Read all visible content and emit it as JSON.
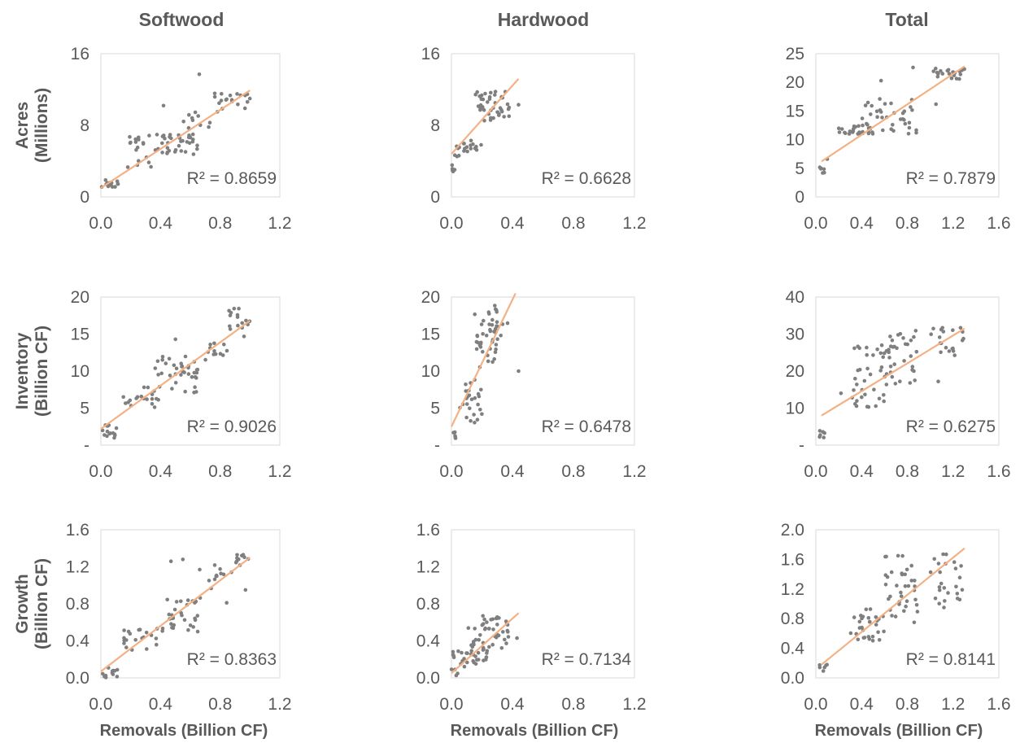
{
  "colors": {
    "points": "#7f7f7f",
    "trendline": "#f4b183",
    "text": "#595959",
    "frame": "#d9d9d9"
  },
  "chart_data": {
    "column_titles": [
      "Softwood",
      "Hardwood",
      "Total"
    ],
    "row_titles": [
      [
        "Acres",
        "(Millions)"
      ],
      [
        "Inventory",
        "(Billion CF)"
      ],
      [
        "Growth",
        "(Billion CF)"
      ]
    ],
    "x_axis_title": "Removals (Billion CF)",
    "panels": [
      {
        "id": "acres-softwood",
        "type": "scatter",
        "column": "Softwood",
        "row": "Acres",
        "r2": "R² = 0.8659",
        "xlim": [
          0,
          1.2
        ],
        "xticks": [
          "0.0",
          "0.4",
          "0.8",
          "1.2"
        ],
        "ylim": [
          0,
          16
        ],
        "yticks": [
          "0",
          "8",
          "16"
        ],
        "trendline": {
          "x": [
            0.0,
            1.0
          ],
          "y": [
            1.0,
            11.9
          ]
        },
        "clusters": [
          {
            "x": [
              0.0,
              0.12
            ],
            "y": [
              1.0,
              1.9
            ],
            "n": 14
          },
          {
            "x": [
              0.18,
              0.35
            ],
            "y": [
              3.0,
              7.0
            ],
            "n": 18
          },
          {
            "x": [
              0.35,
              0.65
            ],
            "y": [
              4.5,
              7.0
            ],
            "n": 34
          },
          {
            "x": [
              0.55,
              0.75
            ],
            "y": [
              6.0,
              9.5
            ],
            "n": 12
          },
          {
            "x": [
              0.75,
              1.0
            ],
            "y": [
              9.5,
              11.8
            ],
            "n": 20
          }
        ],
        "outliers": [
          {
            "x": 0.66,
            "y": 13.7
          },
          {
            "x": 0.42,
            "y": 10.2
          }
        ]
      },
      {
        "id": "acres-hardwood",
        "type": "scatter",
        "column": "Hardwood",
        "row": "Acres",
        "r2": "R² = 0.6628",
        "xlim": [
          0,
          1.2
        ],
        "xticks": [
          "0.0",
          "0.4",
          "0.8",
          "1.2"
        ],
        "ylim": [
          0,
          16
        ],
        "yticks": [
          "0",
          "8",
          "16"
        ],
        "trendline": {
          "x": [
            0.0,
            0.44
          ],
          "y": [
            4.8,
            13.2
          ]
        },
        "clusters": [
          {
            "x": [
              0.0,
              0.03
            ],
            "y": [
              2.8,
              3.8
            ],
            "n": 5
          },
          {
            "x": [
              0.02,
              0.1
            ],
            "y": [
              4.5,
              6.0
            ],
            "n": 8
          },
          {
            "x": [
              0.08,
              0.2
            ],
            "y": [
              5.0,
              6.5
            ],
            "n": 12
          },
          {
            "x": [
              0.15,
              0.4
            ],
            "y": [
              8.5,
              11.8
            ],
            "n": 45
          }
        ],
        "outliers": [
          {
            "x": 0.44,
            "y": 10.3
          }
        ]
      },
      {
        "id": "acres-total",
        "type": "scatter",
        "column": "Total",
        "row": "Acres",
        "r2": "R² = 0.7879",
        "xlim": [
          0,
          1.6
        ],
        "xticks": [
          "0.0",
          "0.4",
          "0.8",
          "1.2",
          "1.6"
        ],
        "ylim": [
          0,
          25
        ],
        "yticks": [
          "0",
          "5",
          "10",
          "15",
          "20",
          "25"
        ],
        "trendline": {
          "x": [
            0.05,
            1.3
          ],
          "y": [
            6.2,
            22.8
          ]
        },
        "clusters": [
          {
            "x": [
              0.03,
              0.08
            ],
            "y": [
              3.8,
              5.2
            ],
            "n": 6
          },
          {
            "x": [
              0.2,
              0.5
            ],
            "y": [
              11.0,
              12.5
            ],
            "n": 22
          },
          {
            "x": [
              0.4,
              0.9
            ],
            "y": [
              11.0,
              17.5
            ],
            "n": 40
          },
          {
            "x": [
              1.0,
              1.3
            ],
            "y": [
              20.5,
              22.5
            ],
            "n": 22
          }
        ],
        "outliers": [
          {
            "x": 0.57,
            "y": 20.3
          },
          {
            "x": 0.85,
            "y": 22.6
          },
          {
            "x": 1.05,
            "y": 16.2
          },
          {
            "x": 0.1,
            "y": 6.6
          }
        ]
      },
      {
        "id": "inventory-softwood",
        "type": "scatter",
        "column": "Softwood",
        "row": "Inventory",
        "r2": "R² = 0.9026",
        "xlim": [
          0,
          1.2
        ],
        "xticks": [
          "0.0",
          "0.4",
          "0.8",
          "1.2"
        ],
        "ylim": [
          0,
          20
        ],
        "yticks": [
          "-",
          "5",
          "10",
          "15",
          "20"
        ],
        "trendline": {
          "x": [
            0.0,
            1.0
          ],
          "y": [
            2.2,
            16.8
          ]
        },
        "clusters": [
          {
            "x": [
              0.0,
              0.12
            ],
            "y": [
              0.8,
              2.8
            ],
            "n": 14
          },
          {
            "x": [
              0.15,
              0.4
            ],
            "y": [
              5.0,
              8.0
            ],
            "n": 20
          },
          {
            "x": [
              0.35,
              0.65
            ],
            "y": [
              7.0,
              12.0
            ],
            "n": 35
          },
          {
            "x": [
              0.7,
              0.85
            ],
            "y": [
              11.0,
              14.0
            ],
            "n": 12
          },
          {
            "x": [
              0.85,
              1.0
            ],
            "y": [
              14.5,
              18.5
            ],
            "n": 16
          }
        ],
        "outliers": [
          {
            "x": 0.64,
            "y": 7.2
          },
          {
            "x": 0.5,
            "y": 14.3
          }
        ]
      },
      {
        "id": "inventory-hardwood",
        "type": "scatter",
        "column": "Hardwood",
        "row": "Inventory",
        "r2": "R² = 0.6478",
        "xlim": [
          0,
          1.2
        ],
        "xticks": [
          "0.0",
          "0.4",
          "0.8",
          "1.2"
        ],
        "ylim": [
          0,
          20
        ],
        "yticks": [
          "-",
          "5",
          "10",
          "15",
          "20"
        ],
        "trendline": {
          "x": [
            0.0,
            0.42
          ],
          "y": [
            2.5,
            20.5
          ]
        },
        "clusters": [
          {
            "x": [
              0.0,
              0.03
            ],
            "y": [
              0.8,
              2.5
            ],
            "n": 5
          },
          {
            "x": [
              0.05,
              0.2
            ],
            "y": [
              3.0,
              9.0
            ],
            "n": 25
          },
          {
            "x": [
              0.15,
              0.3
            ],
            "y": [
              10.5,
              19.5
            ],
            "n": 35
          },
          {
            "x": [
              0.25,
              0.4
            ],
            "y": [
              12.0,
              17.0
            ],
            "n": 12
          }
        ],
        "outliers": [
          {
            "x": 0.44,
            "y": 10.0
          }
        ]
      },
      {
        "id": "inventory-total",
        "type": "scatter",
        "column": "Total",
        "row": "Inventory",
        "r2": "R² = 0.6275",
        "xlim": [
          0,
          1.6
        ],
        "xticks": [
          "0.0",
          "0.4",
          "0.8",
          "1.2",
          "1.6"
        ],
        "ylim": [
          0,
          40
        ],
        "yticks": [
          "-",
          "10",
          "20",
          "30",
          "40"
        ],
        "trendline": {
          "x": [
            0.05,
            1.3
          ],
          "y": [
            8.0,
            31.5
          ]
        },
        "clusters": [
          {
            "x": [
              0.03,
              0.08
            ],
            "y": [
              2.0,
              4.0
            ],
            "n": 6
          },
          {
            "x": [
              0.3,
              0.6
            ],
            "y": [
              10.0,
              27.0
            ],
            "n": 35
          },
          {
            "x": [
              0.6,
              0.9
            ],
            "y": [
              16.0,
              31.0
            ],
            "n": 35
          },
          {
            "x": [
              1.0,
              1.3
            ],
            "y": [
              24.0,
              32.0
            ],
            "n": 20
          }
        ],
        "outliers": [
          {
            "x": 1.07,
            "y": 17.2
          },
          {
            "x": 0.22,
            "y": 14.0
          }
        ]
      },
      {
        "id": "growth-softwood",
        "type": "scatter",
        "column": "Softwood",
        "row": "Growth",
        "r2": "R² = 0.8363",
        "xlim": [
          0,
          1.2
        ],
        "xticks": [
          "0.0",
          "0.4",
          "0.8",
          "1.2"
        ],
        "ylim": [
          0,
          1.6
        ],
        "yticks": [
          "0.0",
          "0.4",
          "0.8",
          "1.2",
          "1.6"
        ],
        "trendline": {
          "x": [
            0.0,
            1.0
          ],
          "y": [
            0.07,
            1.3
          ]
        },
        "clusters": [
          {
            "x": [
              0.0,
              0.12
            ],
            "y": [
              0.0,
              0.12
            ],
            "n": 12
          },
          {
            "x": [
              0.15,
              0.4
            ],
            "y": [
              0.3,
              0.55
            ],
            "n": 20
          },
          {
            "x": [
              0.4,
              0.65
            ],
            "y": [
              0.5,
              0.85
            ],
            "n": 30
          },
          {
            "x": [
              0.65,
              0.9
            ],
            "y": [
              0.8,
              1.25
            ],
            "n": 14
          },
          {
            "x": [
              0.9,
              1.0
            ],
            "y": [
              1.2,
              1.33
            ],
            "n": 10
          }
        ],
        "outliers": [
          {
            "x": 0.47,
            "y": 1.26
          },
          {
            "x": 0.55,
            "y": 1.28
          },
          {
            "x": 0.97,
            "y": 0.95
          },
          {
            "x": 0.62,
            "y": 0.55
          }
        ]
      },
      {
        "id": "growth-hardwood",
        "type": "scatter",
        "column": "Hardwood",
        "row": "Growth",
        "r2": "R² = 0.7134",
        "xlim": [
          0,
          1.2
        ],
        "xticks": [
          "0.0",
          "0.4",
          "0.8",
          "1.2"
        ],
        "ylim": [
          0,
          1.6
        ],
        "yticks": [
          "0.0",
          "0.4",
          "0.8",
          "1.2",
          "1.6"
        ],
        "trendline": {
          "x": [
            0.0,
            0.44
          ],
          "y": [
            0.05,
            0.7
          ]
        },
        "clusters": [
          {
            "x": [
              0.0,
              0.1
            ],
            "y": [
              0.02,
              0.3
            ],
            "n": 15
          },
          {
            "x": [
              0.1,
              0.25
            ],
            "y": [
              0.15,
              0.55
            ],
            "n": 35
          },
          {
            "x": [
              0.2,
              0.38
            ],
            "y": [
              0.3,
              0.67
            ],
            "n": 30
          }
        ],
        "outliers": [
          {
            "x": 0.43,
            "y": 0.43
          }
        ]
      },
      {
        "id": "growth-total",
        "type": "scatter",
        "column": "Total",
        "row": "Growth",
        "r2": "R² = 0.8141",
        "xlim": [
          0,
          1.6
        ],
        "xticks": [
          "0.0",
          "0.4",
          "0.8",
          "1.2",
          "1.6"
        ],
        "ylim": [
          0,
          2.0
        ],
        "yticks": [
          "0.0",
          "0.4",
          "0.8",
          "1.2",
          "1.6",
          "2.0"
        ],
        "trendline": {
          "x": [
            0.05,
            1.3
          ],
          "y": [
            0.18,
            1.75
          ]
        },
        "clusters": [
          {
            "x": [
              0.03,
              0.1
            ],
            "y": [
              0.08,
              0.2
            ],
            "n": 6
          },
          {
            "x": [
              0.3,
              0.6
            ],
            "y": [
              0.5,
              0.95
            ],
            "n": 30
          },
          {
            "x": [
              0.6,
              0.9
            ],
            "y": [
              0.8,
              1.65
            ],
            "n": 35
          },
          {
            "x": [
              1.0,
              1.3
            ],
            "y": [
              1.0,
              1.72
            ],
            "n": 24
          }
        ],
        "outliers": [
          {
            "x": 0.86,
            "y": 0.75
          },
          {
            "x": 1.12,
            "y": 0.95
          }
        ]
      }
    ]
  }
}
